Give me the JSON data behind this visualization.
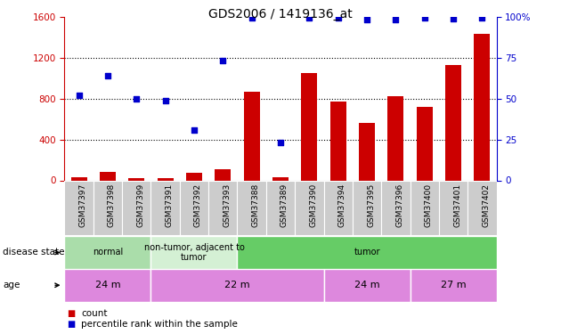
{
  "title": "GDS2006 / 1419136_at",
  "samples": [
    "GSM37397",
    "GSM37398",
    "GSM37399",
    "GSM37391",
    "GSM37392",
    "GSM37393",
    "GSM37388",
    "GSM37389",
    "GSM37390",
    "GSM37394",
    "GSM37395",
    "GSM37396",
    "GSM37400",
    "GSM37401",
    "GSM37402"
  ],
  "count_values": [
    30,
    80,
    20,
    20,
    70,
    110,
    870,
    30,
    1050,
    770,
    560,
    820,
    720,
    1130,
    1430
  ],
  "percentile_values": [
    51.9,
    63.75,
    50.0,
    48.75,
    30.6,
    73.1,
    99.4,
    23.1,
    99.4,
    99.4,
    98.1,
    98.1,
    99.4,
    98.75,
    99.4
  ],
  "left_ylim": [
    0,
    1600
  ],
  "left_yticks": [
    0,
    400,
    800,
    1200,
    1600
  ],
  "right_ylim": [
    0,
    100
  ],
  "right_yticks": [
    0,
    25,
    50,
    75,
    100
  ],
  "bar_color": "#cc0000",
  "dot_color": "#0000cc",
  "disease_state_groups": [
    {
      "label": "normal",
      "start": 0,
      "end": 3,
      "color": "#aaddaa"
    },
    {
      "label": "non-tumor, adjacent to\ntumor",
      "start": 3,
      "end": 6,
      "color": "#d4f0d4"
    },
    {
      "label": "tumor",
      "start": 6,
      "end": 15,
      "color": "#66cc66"
    }
  ],
  "age_groups": [
    {
      "label": "24 m",
      "start": 0,
      "end": 3,
      "color": "#dd88dd"
    },
    {
      "label": "22 m",
      "start": 3,
      "end": 9,
      "color": "#dd88dd"
    },
    {
      "label": "24 m",
      "start": 9,
      "end": 12,
      "color": "#dd88dd"
    },
    {
      "label": "27 m",
      "start": 12,
      "end": 15,
      "color": "#dd88dd"
    }
  ],
  "legend_items": [
    {
      "label": "count",
      "color": "#cc0000",
      "marker": "s"
    },
    {
      "label": "percentile rank within the sample",
      "color": "#0000cc",
      "marker": "s"
    }
  ],
  "bg_color": "#ffffff",
  "left_axis_color": "#cc0000",
  "right_axis_color": "#0000cc",
  "xtick_bg": "#cccccc"
}
